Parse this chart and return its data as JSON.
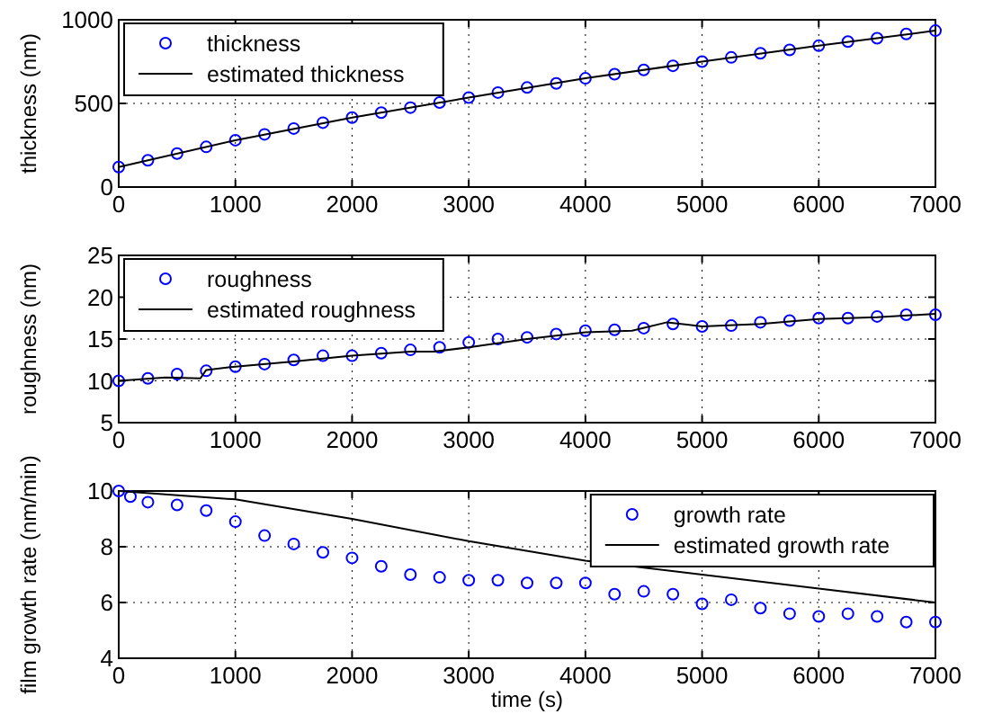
{
  "chart_data": [
    {
      "type": "line",
      "ylabel": "thickness (nm)",
      "xlim": [
        0,
        7000
      ],
      "xticks": [
        0,
        1000,
        2000,
        3000,
        4000,
        5000,
        6000,
        7000
      ],
      "ylim": [
        0,
        1000
      ],
      "yticks": [
        0,
        500,
        1000
      ],
      "grid": true,
      "legend": "top left",
      "series": [
        {
          "name": "thickness",
          "type": "scatter",
          "marker": "circle",
          "color": "#0000ff",
          "x": [
            0,
            250,
            500,
            750,
            1000,
            1250,
            1500,
            1750,
            2000,
            2250,
            2500,
            2750,
            3000,
            3250,
            3500,
            3750,
            4000,
            4250,
            4500,
            4750,
            5000,
            5250,
            5500,
            5750,
            6000,
            6250,
            6500,
            6750,
            7000
          ],
          "values": [
            120,
            160,
            200,
            240,
            280,
            315,
            350,
            385,
            415,
            445,
            475,
            505,
            535,
            565,
            595,
            620,
            650,
            675,
            700,
            725,
            750,
            775,
            800,
            820,
            845,
            870,
            890,
            915,
            935
          ]
        },
        {
          "name": "estimated thickness",
          "marker": "none",
          "color": "#000000",
          "x": [
            0,
            1000,
            2000,
            3000,
            4000,
            5000,
            6000,
            7000
          ],
          "values": [
            120,
            280,
            415,
            535,
            650,
            750,
            845,
            935
          ]
        }
      ]
    },
    {
      "type": "line",
      "ylabel": "roughness (nm)",
      "xlim": [
        0,
        7000
      ],
      "xticks": [
        0,
        1000,
        2000,
        3000,
        4000,
        5000,
        6000,
        7000
      ],
      "ylim": [
        5,
        25
      ],
      "yticks": [
        5,
        10,
        15,
        20,
        25
      ],
      "grid": true,
      "legend": "top left",
      "series": [
        {
          "name": "roughness",
          "type": "scatter",
          "marker": "circle",
          "color": "#0000ff",
          "x": [
            0,
            250,
            500,
            750,
            1000,
            1250,
            1500,
            1750,
            2000,
            2250,
            2500,
            2750,
            3000,
            3250,
            3500,
            3750,
            4000,
            4250,
            4500,
            4750,
            5000,
            5250,
            5500,
            5750,
            6000,
            6250,
            6500,
            6750,
            7000
          ],
          "values": [
            10,
            10.3,
            10.8,
            11.2,
            11.7,
            12,
            12.5,
            13,
            13,
            13.3,
            13.7,
            14,
            14.6,
            15,
            15.2,
            15.6,
            16,
            16.1,
            16.3,
            16.8,
            16.5,
            16.6,
            17,
            17.2,
            17.5,
            17.5,
            17.7,
            17.9,
            17.9
          ]
        },
        {
          "name": "estimated roughness",
          "marker": "none",
          "color": "#000000",
          "x": [
            0,
            400,
            700,
            750,
            1000,
            1500,
            2000,
            2500,
            2700,
            3000,
            3500,
            4000,
            4400,
            4700,
            5000,
            5500,
            6000,
            6500,
            7000
          ],
          "values": [
            10,
            10.4,
            10.3,
            11.3,
            11.7,
            12.3,
            13,
            13.5,
            13.5,
            14,
            15,
            15.8,
            16,
            17,
            16.5,
            16.8,
            17.4,
            17.6,
            18
          ]
        }
      ]
    },
    {
      "type": "line",
      "xlabel": "time (s)",
      "ylabel": "film growth rate (nm/min)",
      "xlim": [
        0,
        7000
      ],
      "xticks": [
        0,
        1000,
        2000,
        3000,
        4000,
        5000,
        6000,
        7000
      ],
      "ylim": [
        4,
        10
      ],
      "yticks": [
        4,
        6,
        8,
        10
      ],
      "grid": true,
      "legend": "top right",
      "series": [
        {
          "name": "growth rate",
          "type": "scatter",
          "marker": "circle",
          "color": "#0000ff",
          "x": [
            0,
            100,
            250,
            500,
            750,
            1000,
            1250,
            1500,
            1750,
            2000,
            2250,
            2500,
            2750,
            3000,
            3250,
            3500,
            3750,
            4000,
            4250,
            4500,
            4750,
            5000,
            5250,
            5500,
            5750,
            6000,
            6250,
            6500,
            6750,
            7000
          ],
          "values": [
            10,
            9.8,
            9.6,
            9.5,
            9.3,
            8.9,
            8.4,
            8.1,
            7.8,
            7.6,
            7.3,
            7,
            6.9,
            6.8,
            6.8,
            6.7,
            6.7,
            6.7,
            6.3,
            6.4,
            6.3,
            5.95,
            6.1,
            5.8,
            5.6,
            5.5,
            5.6,
            5.5,
            5.3,
            5.3
          ]
        },
        {
          "name": "estimated growth rate",
          "marker": "none",
          "color": "#000000",
          "x": [
            0,
            1000,
            2000,
            3000,
            4000,
            5000,
            6000,
            7000
          ],
          "values": [
            10,
            9.7,
            9,
            8.2,
            7.5,
            7,
            6.5,
            6
          ]
        }
      ]
    }
  ]
}
